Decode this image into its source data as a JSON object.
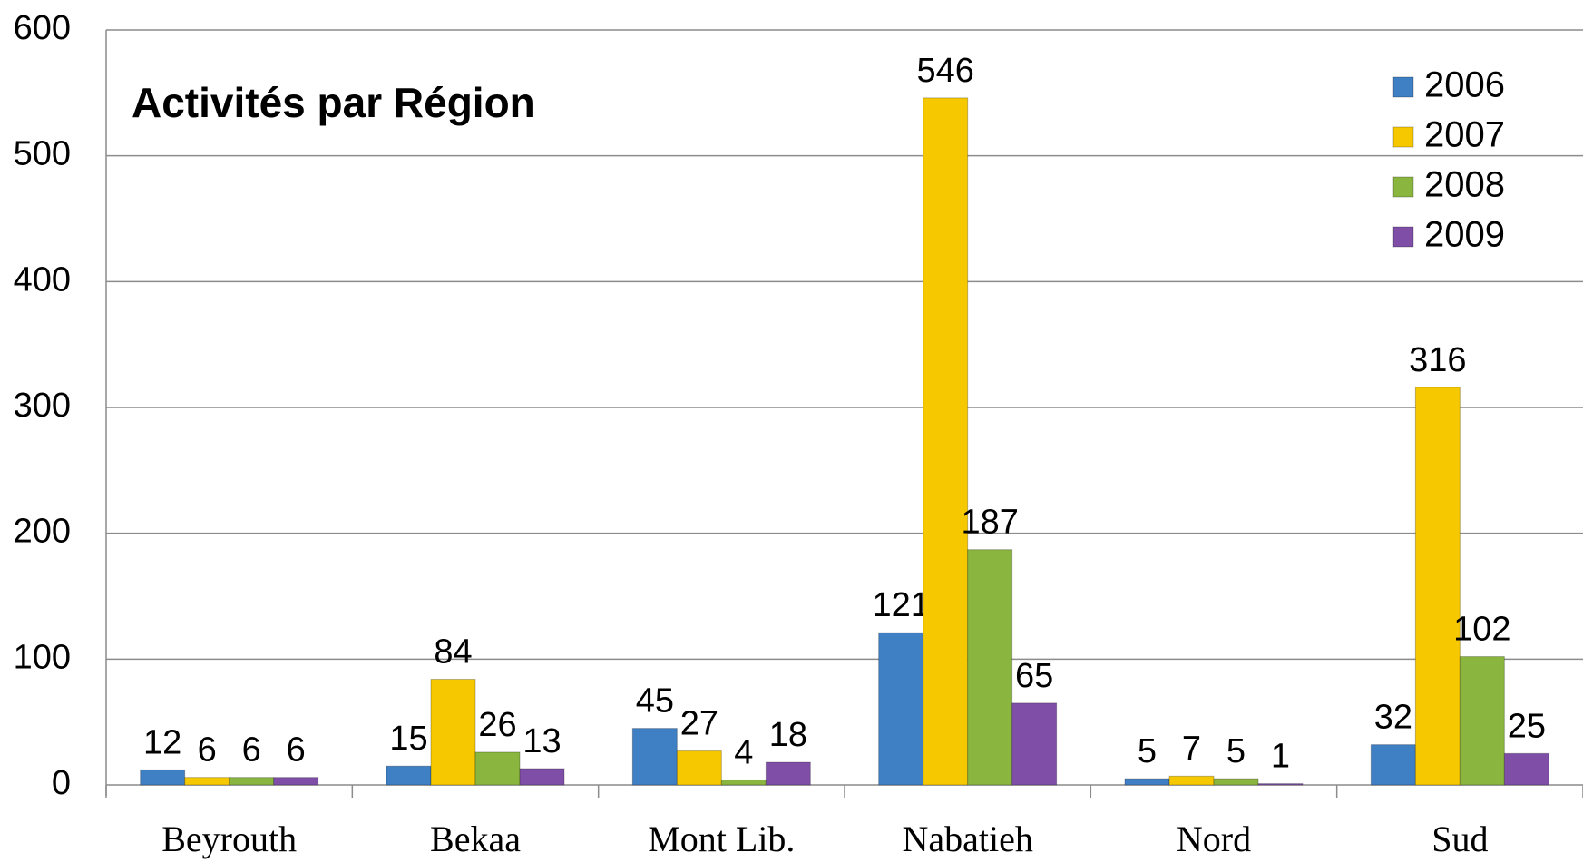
{
  "chart_data": {
    "type": "bar",
    "title": "Activités par Région",
    "categories": [
      "Beyrouth",
      "Bekaa",
      "Mont Lib.",
      "Nabatieh",
      "Nord",
      "Sud"
    ],
    "series": [
      {
        "name": "2006",
        "color": "#3f7fc4",
        "values": [
          12,
          15,
          45,
          121,
          5,
          32
        ]
      },
      {
        "name": "2007",
        "color": "#f5c800",
        "values": [
          6,
          84,
          27,
          546,
          7,
          316
        ]
      },
      {
        "name": "2008",
        "color": "#8ab53f",
        "values": [
          6,
          26,
          4,
          187,
          5,
          102
        ]
      },
      {
        "name": "2009",
        "color": "#7f4fa8",
        "values": [
          6,
          13,
          18,
          65,
          1,
          25
        ]
      }
    ],
    "ylim": [
      0,
      600
    ],
    "yticks": [
      0,
      100,
      200,
      300,
      400,
      500,
      600
    ],
    "grid": true,
    "legend": "upper right"
  }
}
